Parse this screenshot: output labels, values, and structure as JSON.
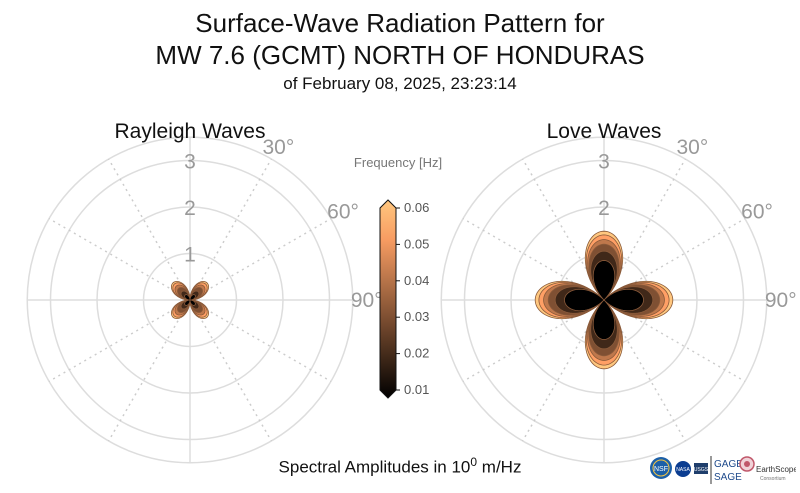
{
  "header": {
    "title_line1": "Surface-Wave Radiation Pattern for",
    "title_line2": "MW 7.6 (GCMT) NORTH OF HONDURAS",
    "subtitle": "of February 08, 2025, 23:23:14"
  },
  "footer": {
    "amplitude_label_prefix": "Spectral Amplitudes in 10",
    "amplitude_exponent": "0",
    "amplitude_label_suffix": " m/Hz"
  },
  "logos": {
    "nsf": "NSF",
    "nasa": "NASA",
    "usgs": "USGS",
    "gage": "GAGE",
    "sage": "SAGE",
    "earthscope": "EarthScope",
    "consortium": "Consortium"
  },
  "chart_data": {
    "type": "polar",
    "colorbar": {
      "title": "Frequency [Hz]",
      "ticks": [
        "0.06",
        "0.05",
        "0.04",
        "0.03",
        "0.02",
        "0.01"
      ],
      "range": [
        0.01,
        0.06
      ],
      "colormap": "copper"
    },
    "radial_ticks": [
      "1",
      "2",
      "3"
    ],
    "radial_max": 3.5,
    "angle_ticks": [
      "30°",
      "60°",
      "90°"
    ],
    "frequencies": [
      0.01,
      0.02,
      0.03,
      0.04,
      0.05,
      0.06
    ],
    "panels": [
      {
        "title": "Rayleigh Waves",
        "pattern": "four-lobe",
        "lobe_orientation_deg": 45,
        "amplitudes": [
          0.15,
          0.25,
          0.35,
          0.42,
          0.48,
          0.52
        ]
      },
      {
        "title": "Love Waves",
        "pattern": "four-lobe",
        "lobe_orientation_deg": 0,
        "amplitudes": [
          0.85,
          1.05,
          1.2,
          1.3,
          1.4,
          1.48
        ]
      }
    ]
  }
}
